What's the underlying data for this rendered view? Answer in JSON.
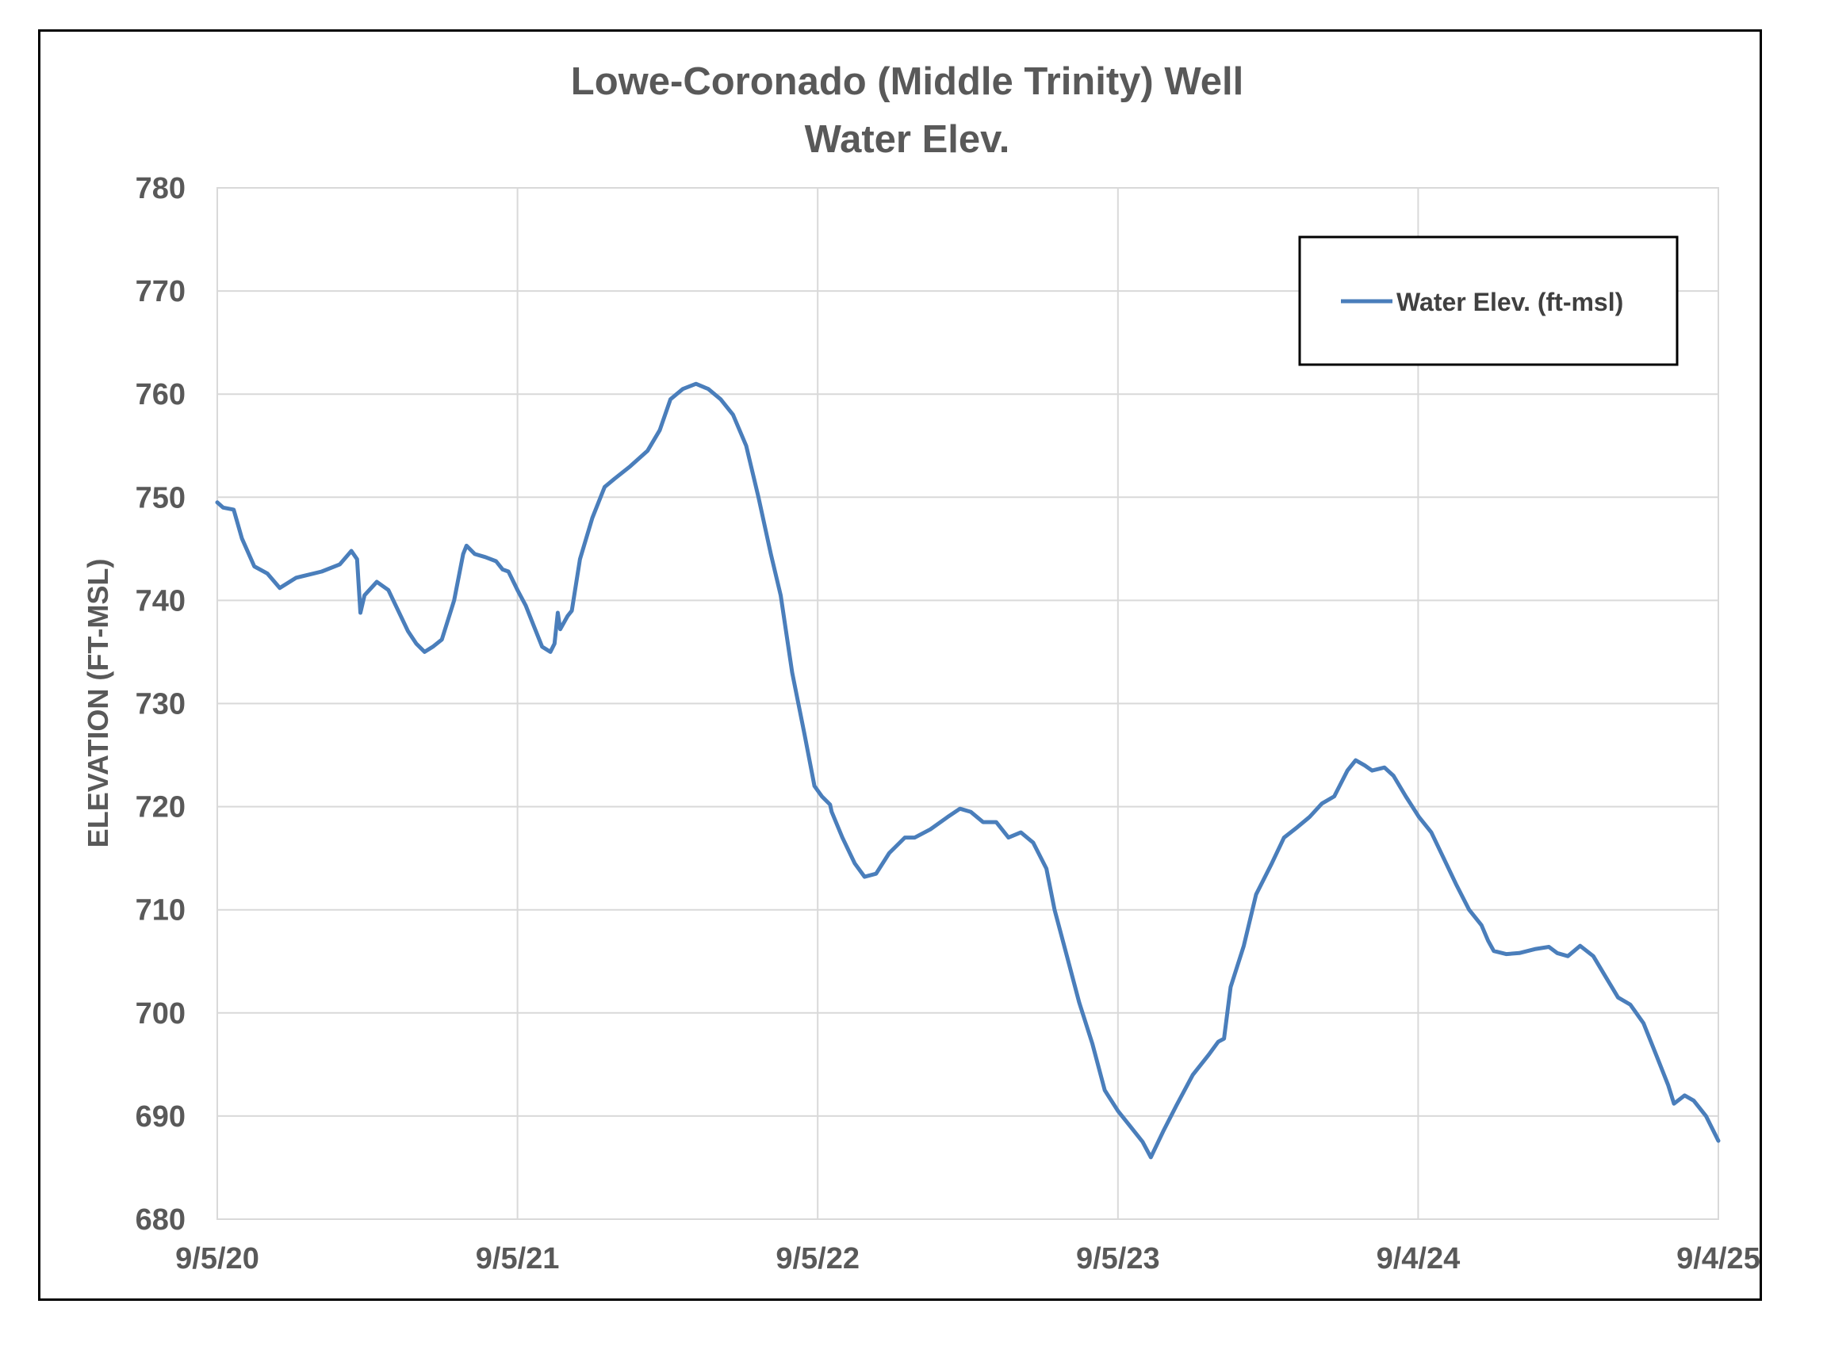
{
  "chart_data": {
    "type": "line",
    "title_lines": [
      "Lowe-Coronado (Middle Trinity) Well",
      "Water Elev."
    ],
    "ylabel": "ELEVATION (FT-MSL)",
    "xlabel": "",
    "ylim": [
      680,
      780
    ],
    "xlim": [
      "2020-09-05",
      "2025-09-04"
    ],
    "y_ticks": [
      680,
      690,
      700,
      710,
      720,
      730,
      740,
      750,
      760,
      770,
      780
    ],
    "x_ticks": [
      {
        "date": "2020-09-05",
        "label": "9/5/20"
      },
      {
        "date": "2021-09-05",
        "label": "9/5/21"
      },
      {
        "date": "2022-09-05",
        "label": "9/5/22"
      },
      {
        "date": "2023-09-05",
        "label": "9/5/23"
      },
      {
        "date": "2024-09-04",
        "label": "9/4/24"
      },
      {
        "date": "2025-09-04",
        "label": "9/4/25"
      }
    ],
    "grid": true,
    "legend_position": "top-right",
    "series": [
      {
        "name": "Water Elev. (ft-msl)",
        "color": "#4a7ebb",
        "points": [
          [
            "2020-09-05",
            749.5
          ],
          [
            "2020-09-12",
            749.0
          ],
          [
            "2020-09-25",
            748.8
          ],
          [
            "2020-10-05",
            746.0
          ],
          [
            "2020-10-20",
            743.3
          ],
          [
            "2020-11-05",
            742.6
          ],
          [
            "2020-11-20",
            741.2
          ],
          [
            "2020-12-10",
            742.2
          ],
          [
            "2021-01-10",
            742.8
          ],
          [
            "2021-02-01",
            743.5
          ],
          [
            "2021-02-15",
            744.8
          ],
          [
            "2021-02-22",
            744.0
          ],
          [
            "2021-02-26",
            738.8
          ],
          [
            "2021-03-03",
            740.5
          ],
          [
            "2021-03-18",
            741.8
          ],
          [
            "2021-04-01",
            741.0
          ],
          [
            "2021-04-10",
            739.5
          ],
          [
            "2021-04-25",
            737.0
          ],
          [
            "2021-05-05",
            735.8
          ],
          [
            "2021-05-15",
            735.0
          ],
          [
            "2021-05-25",
            735.5
          ],
          [
            "2021-06-05",
            736.2
          ],
          [
            "2021-06-20",
            740.0
          ],
          [
            "2021-07-01",
            744.5
          ],
          [
            "2021-07-05",
            745.3
          ],
          [
            "2021-07-15",
            744.5
          ],
          [
            "2021-07-28",
            744.2
          ],
          [
            "2021-08-10",
            743.8
          ],
          [
            "2021-08-18",
            743.0
          ],
          [
            "2021-08-25",
            742.8
          ],
          [
            "2021-09-05",
            741.0
          ],
          [
            "2021-09-15",
            739.5
          ],
          [
            "2021-09-25",
            737.5
          ],
          [
            "2021-10-05",
            735.5
          ],
          [
            "2021-10-15",
            735.0
          ],
          [
            "2021-10-20",
            735.8
          ],
          [
            "2021-10-24",
            738.8
          ],
          [
            "2021-10-27",
            737.2
          ],
          [
            "2021-11-05",
            738.5
          ],
          [
            "2021-11-10",
            739.0
          ],
          [
            "2021-11-20",
            744.0
          ],
          [
            "2021-12-05",
            748.0
          ],
          [
            "2021-12-20",
            751.0
          ],
          [
            "2022-01-01",
            751.8
          ],
          [
            "2022-01-20",
            753.0
          ],
          [
            "2022-02-10",
            754.5
          ],
          [
            "2022-02-25",
            756.5
          ],
          [
            "2022-03-10",
            759.5
          ],
          [
            "2022-03-25",
            760.5
          ],
          [
            "2022-04-10",
            761.0
          ],
          [
            "2022-04-25",
            760.5
          ],
          [
            "2022-05-10",
            759.5
          ],
          [
            "2022-05-25",
            758.0
          ],
          [
            "2022-06-10",
            755.0
          ],
          [
            "2022-06-25",
            750.0
          ],
          [
            "2022-07-10",
            744.5
          ],
          [
            "2022-07-22",
            740.5
          ],
          [
            "2022-08-05",
            733.0
          ],
          [
            "2022-08-20",
            727.0
          ],
          [
            "2022-09-01",
            722.0
          ],
          [
            "2022-09-10",
            721.0
          ],
          [
            "2022-09-20",
            720.2
          ],
          [
            "2022-09-22",
            719.5
          ],
          [
            "2022-10-05",
            717.0
          ],
          [
            "2022-10-20",
            714.5
          ],
          [
            "2022-11-01",
            713.2
          ],
          [
            "2022-11-15",
            713.5
          ],
          [
            "2022-12-01",
            715.5
          ],
          [
            "2022-12-20",
            717.0
          ],
          [
            "2023-01-01",
            717.0
          ],
          [
            "2023-01-20",
            717.8
          ],
          [
            "2023-02-10",
            719.0
          ],
          [
            "2023-02-25",
            719.8
          ],
          [
            "2023-03-10",
            719.5
          ],
          [
            "2023-03-25",
            718.5
          ],
          [
            "2023-04-10",
            718.5
          ],
          [
            "2023-04-25",
            717.0
          ],
          [
            "2023-05-10",
            717.5
          ],
          [
            "2023-05-25",
            716.5
          ],
          [
            "2023-06-10",
            714.0
          ],
          [
            "2023-06-20",
            710.0
          ],
          [
            "2023-07-05",
            705.5
          ],
          [
            "2023-07-20",
            701.0
          ],
          [
            "2023-08-05",
            697.0
          ],
          [
            "2023-08-20",
            692.5
          ],
          [
            "2023-09-05",
            690.5
          ],
          [
            "2023-09-20",
            689.0
          ],
          [
            "2023-10-05",
            687.5
          ],
          [
            "2023-10-15",
            686.0
          ],
          [
            "2023-10-30",
            688.5
          ],
          [
            "2023-11-15",
            691.0
          ],
          [
            "2023-12-05",
            694.0
          ],
          [
            "2023-12-25",
            696.0
          ],
          [
            "2024-01-05",
            697.2
          ],
          [
            "2024-01-12",
            697.5
          ],
          [
            "2024-01-20",
            702.5
          ],
          [
            "2024-02-05",
            706.5
          ],
          [
            "2024-02-20",
            711.5
          ],
          [
            "2024-03-10",
            714.5
          ],
          [
            "2024-03-25",
            717.0
          ],
          [
            "2024-04-10",
            718.0
          ],
          [
            "2024-04-25",
            719.0
          ],
          [
            "2024-05-10",
            720.3
          ],
          [
            "2024-05-25",
            721.0
          ],
          [
            "2024-06-10",
            723.5
          ],
          [
            "2024-06-20",
            724.5
          ],
          [
            "2024-07-01",
            724.0
          ],
          [
            "2024-07-10",
            723.5
          ],
          [
            "2024-07-25",
            723.8
          ],
          [
            "2024-08-05",
            723.0
          ],
          [
            "2024-08-20",
            721.0
          ],
          [
            "2024-09-05",
            719.0
          ],
          [
            "2024-09-20",
            717.5
          ],
          [
            "2024-10-05",
            715.0
          ],
          [
            "2024-10-20",
            712.5
          ],
          [
            "2024-11-05",
            710.0
          ],
          [
            "2024-11-20",
            708.5
          ],
          [
            "2024-11-28",
            707.0
          ],
          [
            "2024-12-05",
            706.0
          ],
          [
            "2024-12-20",
            705.7
          ],
          [
            "2025-01-05",
            705.8
          ],
          [
            "2025-01-25",
            706.2
          ],
          [
            "2025-02-10",
            706.4
          ],
          [
            "2025-02-20",
            705.8
          ],
          [
            "2025-03-05",
            705.5
          ],
          [
            "2025-03-20",
            706.5
          ],
          [
            "2025-04-05",
            705.5
          ],
          [
            "2025-04-20",
            703.5
          ],
          [
            "2025-05-05",
            701.5
          ],
          [
            "2025-05-20",
            700.8
          ],
          [
            "2025-06-05",
            699.0
          ],
          [
            "2025-06-20",
            696.0
          ],
          [
            "2025-07-05",
            693.0
          ],
          [
            "2025-07-12",
            691.2
          ],
          [
            "2025-07-25",
            692.0
          ],
          [
            "2025-08-05",
            691.5
          ],
          [
            "2025-08-20",
            690.0
          ],
          [
            "2025-09-04",
            687.6
          ]
        ]
      }
    ]
  }
}
